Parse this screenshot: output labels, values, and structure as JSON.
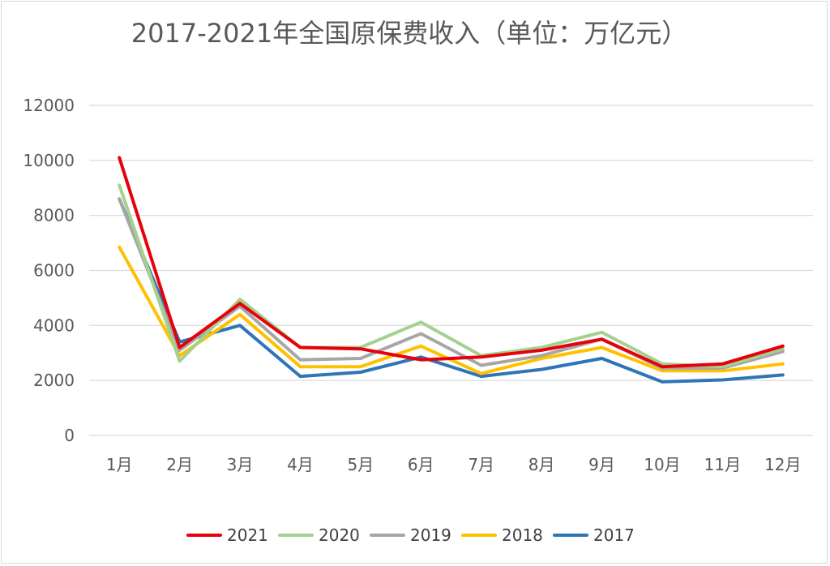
{
  "chart_data": {
    "type": "line",
    "title": "2017-2021年全国原保费收入（单位：万亿元）",
    "xlabel": "",
    "ylabel": "",
    "categories": [
      "1月",
      "2月",
      "3月",
      "4月",
      "5月",
      "6月",
      "7月",
      "8月",
      "9月",
      "10月",
      "11月",
      "12月"
    ],
    "ylim": [
      0,
      12000
    ],
    "yticks": [
      0,
      2000,
      4000,
      6000,
      8000,
      10000,
      12000
    ],
    "grid": true,
    "legend_position": "bottom",
    "series": [
      {
        "name": "2021",
        "color": "#e8000b",
        "values": [
          10100,
          3200,
          4800,
          3200,
          3150,
          2750,
          2850,
          3100,
          3500,
          2500,
          2600,
          3250
        ]
      },
      {
        "name": "2020",
        "color": "#a3d18e",
        "values": [
          9100,
          2700,
          4950,
          3200,
          3200,
          4120,
          2900,
          3200,
          3750,
          2600,
          2500,
          3150
        ]
      },
      {
        "name": "2019",
        "color": "#a6a6a6",
        "values": [
          8600,
          3100,
          4700,
          2750,
          2800,
          3700,
          2550,
          2900,
          3500,
          2450,
          2450,
          3050
        ]
      },
      {
        "name": "2018",
        "color": "#ffc000",
        "values": [
          6850,
          2900,
          4400,
          2500,
          2500,
          3250,
          2250,
          2800,
          3200,
          2350,
          2350,
          2600
        ]
      },
      {
        "name": "2017",
        "color": "#2e75b6",
        "values": [
          8600,
          3400,
          4000,
          2150,
          2300,
          2850,
          2150,
          2400,
          2800,
          1950,
          2020,
          2200
        ]
      }
    ]
  }
}
